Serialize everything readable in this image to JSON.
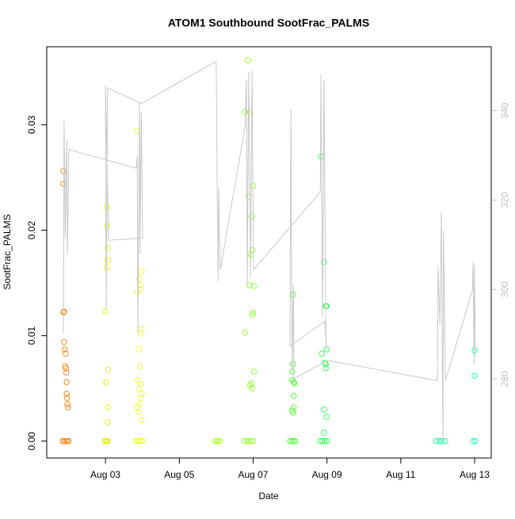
{
  "chart_data": {
    "type": "scatter",
    "title": "ATOM1 Southbound SootFrac_PALMS",
    "x_label": "Date",
    "y_label": "SootFrac_PALMS",
    "xlim": [
      1.41,
      13.45
    ],
    "xticks": [
      {
        "value": 3,
        "label": "Aug 03"
      },
      {
        "value": 5,
        "label": "Aug 05"
      },
      {
        "value": 7,
        "label": "Aug 07"
      },
      {
        "value": 9,
        "label": "Aug 09"
      },
      {
        "value": 11,
        "label": "Aug 11"
      },
      {
        "value": 13,
        "label": "Aug 13"
      }
    ],
    "ylim": [
      -0.0016,
      0.0374
    ],
    "yticks": [
      {
        "value": 0,
        "label": "0.00"
      },
      0.01,
      0.02,
      0.03
    ],
    "y2lim": [
      262.3,
      354.3
    ],
    "y2ticks": [
      280,
      300,
      320,
      340
    ],
    "y2_color": "#c0c0c0",
    "series": [
      {
        "color": "#f28c1e",
        "x": [
          1.86,
          1.86,
          1.86,
          1.88,
          1.88,
          1.9,
          1.92,
          1.91,
          1.93,
          1.94,
          1.95,
          1.95,
          1.96,
          1.97,
          1.99,
          1.84,
          1.88,
          1.92,
          1.96,
          2.0
        ],
        "values": [
          0.0256,
          0.0244,
          0.0122,
          0.0123,
          0.0094,
          0.0087,
          0.0083,
          0.0071,
          0.0069,
          0.0065,
          0.0056,
          0.0045,
          0.0041,
          0.0035,
          0.0032,
          0,
          0,
          0,
          0,
          0
        ]
      },
      {
        "color": "#e6f01e",
        "x": [
          3.04,
          3.04,
          3.06,
          3.06,
          3.04,
          3.0,
          3.08,
          3.02,
          3.06,
          3.06,
          2.98,
          3.01,
          3.04,
          3.07
        ],
        "values": [
          0.0222,
          0.0204,
          0.0183,
          0.0172,
          0.0165,
          0.0123,
          0.0068,
          0.0056,
          0.0032,
          0.0018,
          0,
          0,
          0,
          0
        ]
      },
      {
        "color": "#f0fa3c",
        "x": [
          3.84,
          3.98,
          3.92,
          3.96,
          3.94,
          3.86,
          3.98,
          3.96,
          3.9,
          3.94,
          3.86,
          3.96,
          3.92,
          3.98,
          3.96,
          3.92,
          3.86,
          3.9,
          3.98,
          3.82,
          3.87,
          3.92,
          3.97,
          4.01
        ],
        "values": [
          0.0294,
          0.0161,
          0.0154,
          0.0148,
          0.0144,
          0.0141,
          0.0107,
          0.0102,
          0.0087,
          0.0071,
          0.0058,
          0.0054,
          0.005,
          0.0045,
          0.0041,
          0.0035,
          0.0032,
          0.0028,
          0.002,
          0,
          0,
          0,
          0,
          0
        ]
      },
      {
        "color": "#b4ff2a",
        "x": [
          5.98,
          6.02,
          6.06,
          6.1
        ],
        "values": [
          0,
          0,
          0,
          0
        ]
      },
      {
        "color": "#96ff32",
        "x": [
          6.86,
          6.78,
          6.92,
          7.0,
          6.88,
          6.96,
          6.98,
          6.94,
          6.9,
          7.02,
          7.0,
          6.98,
          6.78,
          7.02,
          6.96,
          6.92,
          6.98,
          6.76,
          6.82,
          6.88,
          6.94,
          7.0
        ],
        "values": [
          0.0361,
          0.0312,
          0.0312,
          0.0242,
          0.0232,
          0.0213,
          0.0181,
          0.0177,
          0.0148,
          0.0147,
          0.0122,
          0.012,
          0.0103,
          0.0066,
          0.0055,
          0.0053,
          0.005,
          0,
          0,
          0,
          0,
          0
        ]
      },
      {
        "color": "#58ff3c",
        "x": [
          8.08,
          8.08,
          8.06,
          8.06,
          8.1,
          8.12,
          8.1,
          8.1,
          8.06,
          8.08,
          8.0,
          8.05,
          8.1,
          8.14
        ],
        "values": [
          0.0139,
          0.0073,
          0.0066,
          0.0058,
          0.0056,
          0.0055,
          0.0043,
          0.0032,
          0.0029,
          0.0027,
          0,
          0,
          0,
          0
        ]
      },
      {
        "color": "#3cff5a",
        "x": [
          8.84,
          8.92,
          8.97,
          8.99,
          8.99,
          8.86,
          8.94,
          8.97,
          8.97,
          8.92,
          8.99,
          8.92,
          8.82,
          8.88,
          8.94,
          9.0
        ],
        "values": [
          0.027,
          0.017,
          0.0128,
          0.0128,
          0.0087,
          0.0083,
          0.0074,
          0.0073,
          0.0069,
          0.003,
          0.0023,
          0.0008,
          0,
          0,
          0,
          0
        ]
      },
      {
        "color": "#1affa0",
        "x": [
          11.96,
          12.04,
          12.12,
          12.2
        ],
        "values": [
          0,
          0,
          0,
          0
        ]
      },
      {
        "color": "#1affc0",
        "x": [
          13.0,
          13.0,
          12.96,
          13.02
        ],
        "values": [
          0.0086,
          0.0062,
          0,
          0
        ]
      },
      {
        "color": "#c8c8c8",
        "mode": "line",
        "axis": "y2",
        "x": [
          1.86,
          1.88,
          1.91,
          1.95,
          1.97,
          2.01,
          3.84,
          3.86,
          3.88,
          3.92,
          3.94,
          3.97,
          4.01,
          3.09,
          3.0,
          3.02,
          3.06,
          3.97,
          6.0,
          6.05,
          6.07,
          6.11,
          6.78,
          6.82,
          6.84,
          6.88,
          6.93,
          6.97,
          7.01,
          8.82,
          8.84,
          8.88,
          8.92,
          8.97,
          8.99,
          8.94,
          8.0,
          8.02,
          8.06,
          8.09,
          8.11,
          8.13,
          9.03,
          11.99,
          12.01,
          12.06,
          12.1,
          12.14,
          12.16,
          12.21,
          12.94,
          12.96,
          12.98,
          13.0,
          13.02
        ],
        "values": [
          290.3,
          337.7,
          311.5,
          333.6,
          308.0,
          331.3,
          327.1,
          330.1,
          290.3,
          341.6,
          308.0,
          339.8,
          311.5,
          311.0,
          345.7,
          295.6,
          345.1,
          341.6,
          351.0,
          301.8,
          322.5,
          304.4,
          336.3,
          346.9,
          300.9,
          348.7,
          302.7,
          349.0,
          304.4,
          321.8,
          348.1,
          293.8,
          346.9,
          290.3,
          286.7,
          292.9,
          287.3,
          340.4,
          281.4,
          300.9,
          279.6,
          280.2,
          284.1,
          279.6,
          305.3,
          292.0,
          317.2,
          266.4,
          313.3,
          279.6,
          299.8,
          306.2,
          283.2,
          305.3,
          285.0
        ]
      }
    ]
  }
}
